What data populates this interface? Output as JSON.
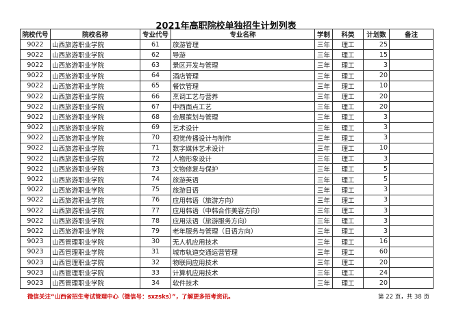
{
  "title": "2021年高职院校单独招生计划列表",
  "headers": [
    "院校代号",
    "院校名称",
    "专业代号",
    "专业名称",
    "学制",
    "科类",
    "计划数",
    "备注"
  ],
  "rows": [
    [
      "9022",
      "山西旅游职业学院",
      "61",
      "旅游管理",
      "三年",
      "理工",
      "25",
      ""
    ],
    [
      "9022",
      "山西旅游职业学院",
      "62",
      "导游",
      "三年",
      "理工",
      "15",
      ""
    ],
    [
      "9022",
      "山西旅游职业学院",
      "63",
      "景区开发与管理",
      "三年",
      "理工",
      "3",
      ""
    ],
    [
      "9022",
      "山西旅游职业学院",
      "64",
      "酒店管理",
      "三年",
      "理工",
      "20",
      ""
    ],
    [
      "9022",
      "山西旅游职业学院",
      "65",
      "餐饮管理",
      "三年",
      "理工",
      "10",
      ""
    ],
    [
      "9022",
      "山西旅游职业学院",
      "66",
      "烹调工艺与营养",
      "三年",
      "理工",
      "20",
      ""
    ],
    [
      "9022",
      "山西旅游职业学院",
      "67",
      "中西面点工艺",
      "三年",
      "理工",
      "20",
      ""
    ],
    [
      "9022",
      "山西旅游职业学院",
      "68",
      "会展策划与管理",
      "三年",
      "理工",
      "3",
      ""
    ],
    [
      "9022",
      "山西旅游职业学院",
      "69",
      "艺术设计",
      "三年",
      "理工",
      "3",
      ""
    ],
    [
      "9022",
      "山西旅游职业学院",
      "70",
      "视觉传播设计与制作",
      "三年",
      "理工",
      "3",
      ""
    ],
    [
      "9022",
      "山西旅游职业学院",
      "71",
      "数字媒体艺术设计",
      "三年",
      "理工",
      "10",
      ""
    ],
    [
      "9022",
      "山西旅游职业学院",
      "72",
      "人物形象设计",
      "三年",
      "理工",
      "3",
      ""
    ],
    [
      "9022",
      "山西旅游职业学院",
      "73",
      "文物修复与保护",
      "三年",
      "理工",
      "5",
      ""
    ],
    [
      "9022",
      "山西旅游职业学院",
      "74",
      "旅游英语",
      "三年",
      "理工",
      "5",
      ""
    ],
    [
      "9022",
      "山西旅游职业学院",
      "75",
      "旅游日语",
      "三年",
      "理工",
      "3",
      ""
    ],
    [
      "9022",
      "山西旅游职业学院",
      "76",
      "应用韩语（旅游方向）",
      "三年",
      "理工",
      "3",
      ""
    ],
    [
      "9022",
      "山西旅游职业学院",
      "77",
      "应用韩语（中韩合作美容方向）",
      "三年",
      "理工",
      "3",
      ""
    ],
    [
      "9022",
      "山西旅游职业学院",
      "78",
      "应用法语（旅游服务方向）",
      "三年",
      "理工",
      "3",
      ""
    ],
    [
      "9022",
      "山西旅游职业学院",
      "79",
      "老年服务与管理（日语方向）",
      "三年",
      "理工",
      "3",
      ""
    ],
    [
      "9023",
      "山西管理职业学院",
      "30",
      "无人机应用技术",
      "三年",
      "理工",
      "16",
      ""
    ],
    [
      "9023",
      "山西管理职业学院",
      "31",
      "城市轨道交通运营管理",
      "三年",
      "理工",
      "60",
      ""
    ],
    [
      "9023",
      "山西管理职业学院",
      "32",
      "物联网应用技术",
      "三年",
      "理工",
      "20",
      ""
    ],
    [
      "9023",
      "山西管理职业学院",
      "33",
      "计算机应用技术",
      "三年",
      "理工",
      "24",
      ""
    ],
    [
      "9023",
      "山西管理职业学院",
      "34",
      "软件技术",
      "三年",
      "理工",
      "20",
      ""
    ]
  ],
  "footer": {
    "notice": "微信关注“山西省招生考试管理中心（微信号：sxzsks）”，了解更多招考资讯。",
    "page": "第 22 页，共 38 页"
  },
  "colors": {
    "notice": "#d01010"
  }
}
